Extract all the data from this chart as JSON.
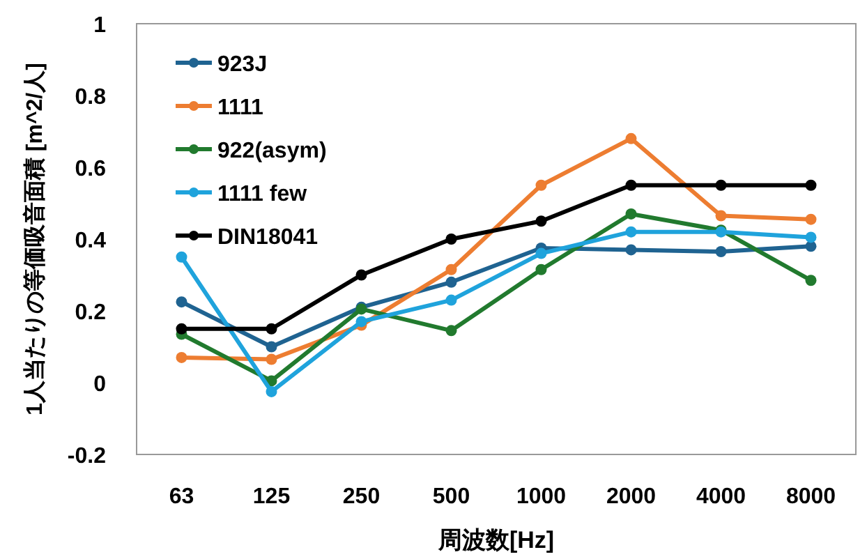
{
  "chart_data": {
    "type": "line",
    "xlabel": "周波数[Hz]",
    "ylabel": "1人当たりの等価吸音面積 [m^2/人]",
    "categories": [
      "63",
      "125",
      "250",
      "500",
      "1000",
      "2000",
      "4000",
      "8000"
    ],
    "ylim": [
      -0.2,
      1
    ],
    "yticks": [
      -0.2,
      0,
      0.2,
      0.4,
      0.6,
      0.8,
      1
    ],
    "grid": false,
    "legend": "top left",
    "marker": "circle",
    "line_style": "solid",
    "series": [
      {
        "name": "923J",
        "color": "#1f6391",
        "values": [
          0.225,
          0.1,
          0.21,
          0.28,
          0.375,
          0.37,
          0.365,
          0.38
        ]
      },
      {
        "name": "1111",
        "color": "#ed7d31",
        "values": [
          0.07,
          0.065,
          0.16,
          0.315,
          0.55,
          0.68,
          0.465,
          0.455
        ]
      },
      {
        "name": "922(asym)",
        "color": "#217a2e",
        "values": [
          0.135,
          0.005,
          0.205,
          0.145,
          0.315,
          0.47,
          0.425,
          0.285
        ]
      },
      {
        "name": "1111 few",
        "color": "#1fa3dc",
        "values": [
          0.35,
          -0.025,
          0.17,
          0.23,
          0.36,
          0.42,
          0.42,
          0.405
        ]
      },
      {
        "name": "DIN18041",
        "color": "#000000",
        "values": [
          0.15,
          0.15,
          0.3,
          0.4,
          0.45,
          0.55,
          0.55,
          0.55
        ]
      }
    ]
  }
}
